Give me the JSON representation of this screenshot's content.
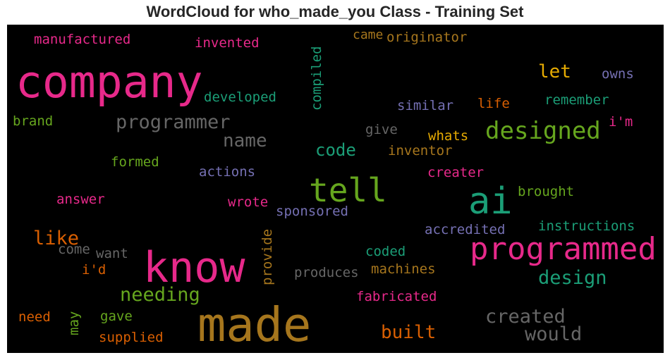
{
  "title": "WordCloud for who_made_you Class - Training Set",
  "words": {
    "company": {
      "text": "company",
      "color": "#e7298a"
    },
    "made": {
      "text": "made",
      "color": "#a6761d"
    },
    "know": {
      "text": "know",
      "color": "#e7298a"
    },
    "programmed": {
      "text": "programmed",
      "color": "#e7298a"
    },
    "ai": {
      "text": "ai",
      "color": "#1b9e77"
    },
    "tell": {
      "text": "tell",
      "color": "#66a61e"
    },
    "designed": {
      "text": "designed",
      "color": "#66a61e"
    },
    "programmer": {
      "text": "programmer",
      "color": "#666666"
    },
    "name": {
      "text": "name",
      "color": "#666666"
    },
    "code": {
      "text": "code",
      "color": "#1b9e77"
    },
    "created": {
      "text": "created",
      "color": "#666666"
    },
    "would": {
      "text": "would",
      "color": "#666666"
    },
    "built": {
      "text": "built",
      "color": "#d95f02"
    },
    "needing": {
      "text": "needing",
      "color": "#66a61e"
    },
    "design": {
      "text": "design",
      "color": "#1b9e77"
    },
    "like": {
      "text": "like",
      "color": "#d95f02"
    },
    "let": {
      "text": "let",
      "color": "#e6ab02"
    },
    "manufactured": {
      "text": "manufactured",
      "color": "#e7298a"
    },
    "invented": {
      "text": "invented",
      "color": "#e7298a"
    },
    "came": {
      "text": "came",
      "color": "#a6761d"
    },
    "originator": {
      "text": "originator",
      "color": "#a6761d"
    },
    "compiled": {
      "text": "compiled",
      "color": "#1b9e77"
    },
    "owns": {
      "text": "owns",
      "color": "#7570b3"
    },
    "developed": {
      "text": "developed",
      "color": "#1b9e77"
    },
    "remember": {
      "text": "remember",
      "color": "#1b9e77"
    },
    "life": {
      "text": "life",
      "color": "#d95f02"
    },
    "similar": {
      "text": "similar",
      "color": "#7570b3"
    },
    "brand": {
      "text": "brand",
      "color": "#66a61e"
    },
    "im": {
      "text": "i'm",
      "color": "#e7298a"
    },
    "give": {
      "text": "give",
      "color": "#666666"
    },
    "whats": {
      "text": "whats",
      "color": "#e6ab02"
    },
    "inventor": {
      "text": "inventor",
      "color": "#a6761d"
    },
    "formed": {
      "text": "formed",
      "color": "#66a61e"
    },
    "actions": {
      "text": "actions",
      "color": "#7570b3"
    },
    "creater": {
      "text": "creater",
      "color": "#e7298a"
    },
    "brought": {
      "text": "brought",
      "color": "#66a61e"
    },
    "answer": {
      "text": "answer",
      "color": "#e7298a"
    },
    "wrote": {
      "text": "wrote",
      "color": "#e7298a"
    },
    "sponsored": {
      "text": "sponsored",
      "color": "#7570b3"
    },
    "instructions": {
      "text": "instructions",
      "color": "#1b9e77"
    },
    "accredited": {
      "text": "accredited",
      "color": "#7570b3"
    },
    "provide": {
      "text": "provide",
      "color": "#a6761d"
    },
    "come": {
      "text": "come",
      "color": "#666666"
    },
    "want": {
      "text": "want",
      "color": "#666666"
    },
    "coded": {
      "text": "coded",
      "color": "#1b9e77"
    },
    "id": {
      "text": "i'd",
      "color": "#d95f02"
    },
    "produces": {
      "text": "produces",
      "color": "#666666"
    },
    "machines": {
      "text": "machines",
      "color": "#a6761d"
    },
    "fabricated": {
      "text": "fabricated",
      "color": "#e7298a"
    },
    "need": {
      "text": "need",
      "color": "#d95f02"
    },
    "may": {
      "text": "may",
      "color": "#66a61e"
    },
    "gave": {
      "text": "gave",
      "color": "#66a61e"
    },
    "supplied": {
      "text": "supplied",
      "color": "#d95f02"
    }
  }
}
